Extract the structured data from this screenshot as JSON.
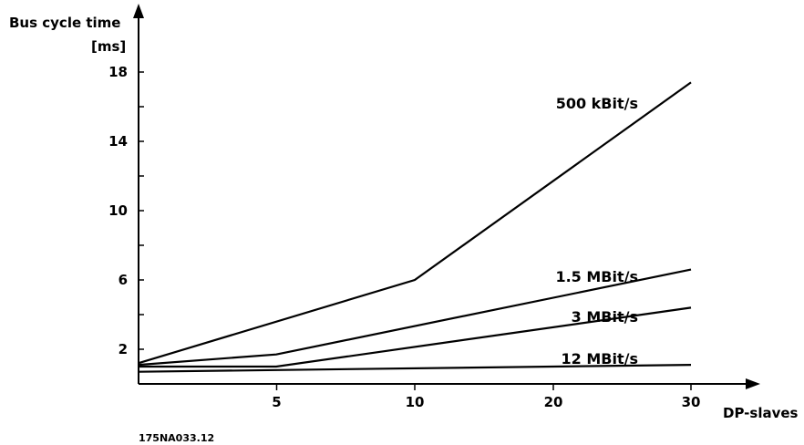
{
  "chart_data": {
    "type": "line",
    "title": "",
    "ylabel": "Bus cycle time",
    "yunit": "[ms]",
    "xlabel": "DP-slaves",
    "figure_code": "175NA033.12",
    "x_ticks": [
      5,
      10,
      20,
      30
    ],
    "y_ticks": [
      2,
      6,
      10,
      14,
      18
    ],
    "series": [
      {
        "name": "500 kBit/s",
        "x": [
          0,
          10,
          30
        ],
        "values": [
          1.2,
          6.0,
          17.4
        ]
      },
      {
        "name": "1.5 MBit/s",
        "x": [
          0,
          5,
          30
        ],
        "values": [
          1.1,
          1.7,
          6.6
        ]
      },
      {
        "name": "3 MBit/s",
        "x": [
          0,
          5,
          30
        ],
        "values": [
          1.0,
          1.0,
          4.4
        ]
      },
      {
        "name": "12 MBit/s",
        "x": [
          0,
          30
        ],
        "values": [
          0.7,
          1.1
        ]
      }
    ]
  }
}
